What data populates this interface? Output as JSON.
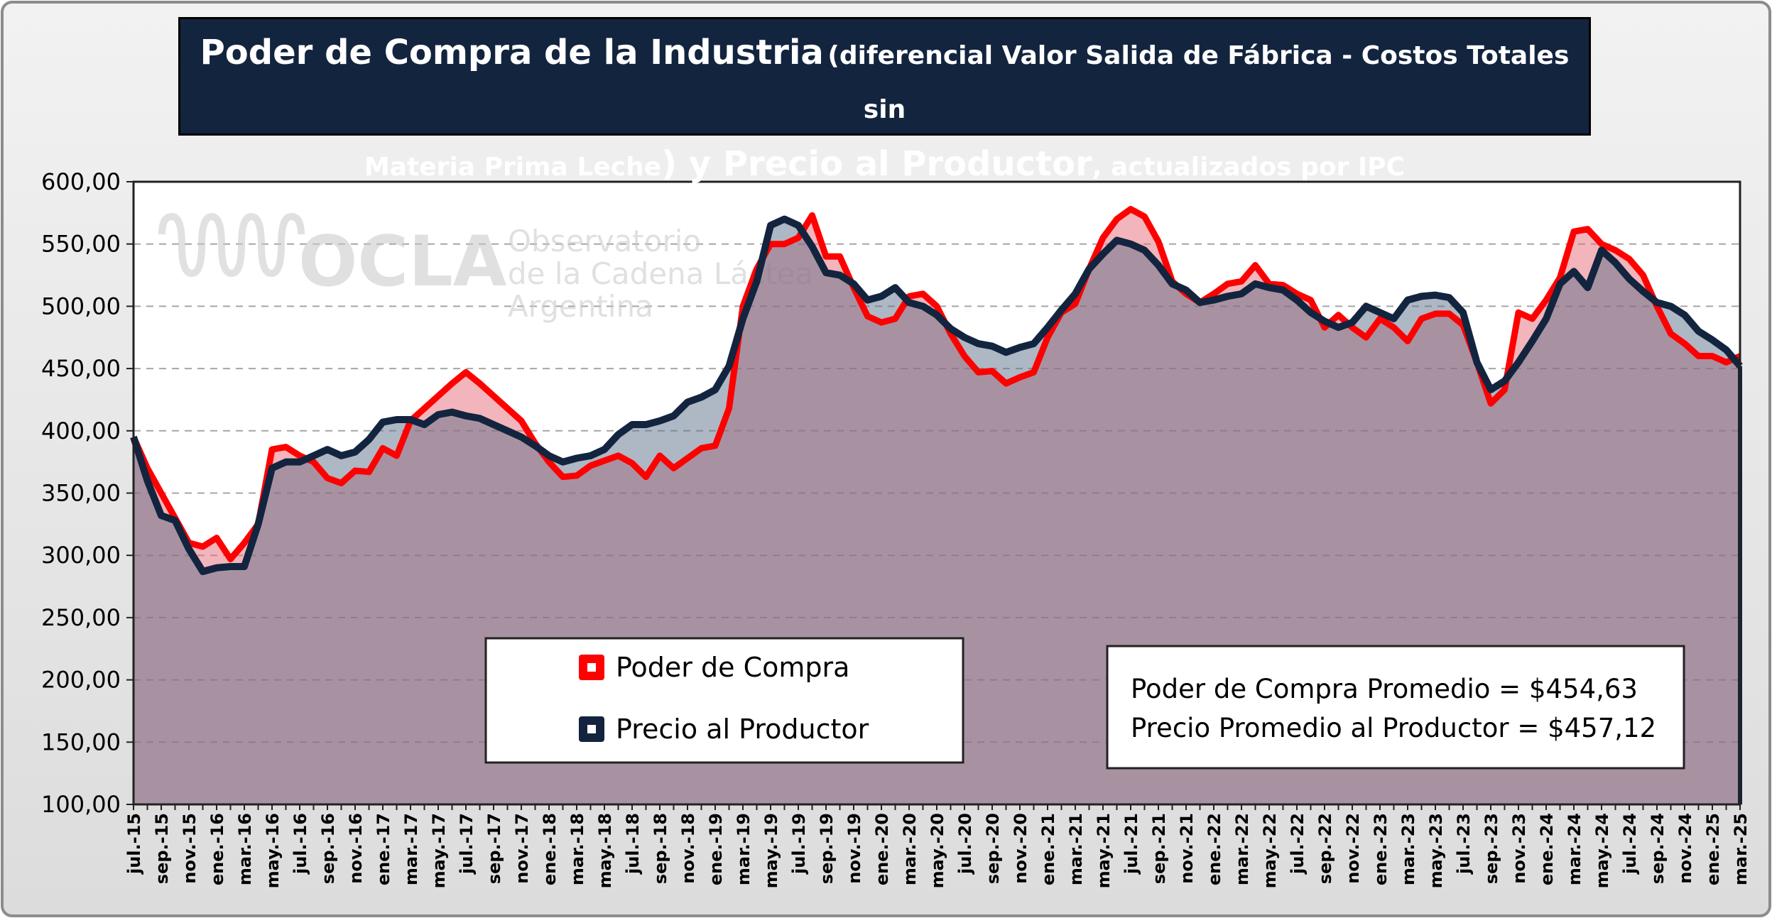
{
  "chart_data": {
    "type": "area",
    "title_parts": [
      "Poder de Compra de la Industria",
      "(diferencial Valor Salida de Fábrica - Costos Totales sin",
      "Materia Prima Leche",
      ") y Precio al Productor",
      ", actualizados por IPC"
    ],
    "watermark": [
      "OCLA",
      "Observatorio",
      "de la Cadena Láctea",
      "Argentina"
    ],
    "annotations": [
      "Poder de Compra Promedio = $454,63",
      "Precio Promedio al Productor = $457,12"
    ],
    "categories": [
      "jul.-15",
      null,
      "sep.-15",
      null,
      "nov.-15",
      null,
      "ene.-16",
      null,
      "mar.-16",
      null,
      "may.-16",
      null,
      "jul.-16",
      null,
      "sep.-16",
      null,
      "nov.-16",
      null,
      "ene.-17",
      null,
      "mar.-17",
      null,
      "may.-17",
      null,
      "jul.-17",
      null,
      "sep.-17",
      null,
      "nov.-17",
      null,
      "ene.-18",
      null,
      "mar.-18",
      null,
      "may.-18",
      null,
      "jul.-18",
      null,
      "sep.-18",
      null,
      "nov.-18",
      null,
      "ene.-19",
      null,
      "mar.-19",
      null,
      "may.-19",
      null,
      "jul.-19",
      null,
      "sep.-19",
      null,
      "nov.-19",
      null,
      "ene.-20",
      null,
      "mar.-20",
      null,
      "may.-20",
      null,
      "jul.-20",
      null,
      "sep.-20",
      null,
      "nov.-20",
      null,
      "ene.-21",
      null,
      "mar.-21",
      null,
      "may.-21",
      null,
      "jul.-21",
      null,
      "sep.-21",
      null,
      "nov.-21",
      null,
      "ene.-22",
      null,
      "mar.-22",
      null,
      "may.-22",
      null,
      "jul.-22",
      null,
      "sep.-22",
      null,
      "nov.-22",
      null,
      "ene.-23",
      null,
      "mar.-23",
      null,
      "may.-23",
      null,
      "jul.-23",
      null,
      "sep.-23",
      null,
      "nov.-23",
      null,
      "ene.-24",
      null,
      "mar.-24",
      null,
      "may.-24",
      null,
      "jul.-24",
      null,
      "sep.-24",
      null,
      "nov.-24",
      null,
      "ene.-25",
      null,
      "mar.-25"
    ],
    "series": [
      {
        "name": "Poder de Compra",
        "color": "#ff0000",
        "fill": "#e56b78",
        "values": [
          395,
          370,
          350,
          330,
          310,
          307,
          314,
          297,
          310,
          325,
          385,
          387,
          380,
          375,
          362,
          358,
          368,
          367,
          386,
          380,
          408,
          418,
          428,
          438,
          447,
          438,
          428,
          418,
          408,
          390,
          375,
          363,
          364,
          372,
          376,
          380,
          374,
          363,
          380,
          370,
          378,
          386,
          388,
          418,
          500,
          530,
          550,
          550,
          555,
          573,
          540,
          540,
          515,
          492,
          487,
          490,
          508,
          510,
          500,
          478,
          460,
          447,
          448,
          438,
          443,
          447,
          475,
          495,
          502,
          530,
          555,
          570,
          578,
          572,
          552,
          520,
          510,
          503,
          510,
          518,
          520,
          533,
          518,
          517,
          510,
          505,
          483,
          493,
          483,
          475,
          490,
          483,
          472,
          490,
          494,
          494,
          485,
          455,
          422,
          433,
          495,
          490,
          505,
          523,
          560,
          562,
          550,
          545,
          538,
          525,
          500,
          478,
          470,
          460,
          460,
          455,
          460
        ]
      },
      {
        "name": "Precio al Productor",
        "color": "#13243f",
        "fill": "#5e6f8a",
        "values": [
          395,
          360,
          332,
          328,
          305,
          287,
          290,
          291,
          291,
          325,
          370,
          375,
          375,
          380,
          385,
          380,
          383,
          393,
          407,
          409,
          409,
          405,
          413,
          415,
          412,
          410,
          405,
          400,
          395,
          388,
          380,
          375,
          378,
          380,
          385,
          397,
          405,
          405,
          408,
          412,
          423,
          427,
          433,
          452,
          490,
          520,
          565,
          570,
          565,
          548,
          527,
          525,
          518,
          505,
          508,
          515,
          503,
          500,
          493,
          482,
          475,
          470,
          468,
          463,
          467,
          470,
          483,
          497,
          510,
          530,
          542,
          553,
          550,
          545,
          533,
          518,
          513,
          503,
          505,
          508,
          510,
          518,
          515,
          513,
          505,
          495,
          488,
          483,
          487,
          500,
          495,
          490,
          505,
          508,
          509,
          507,
          495,
          455,
          433,
          440,
          455,
          472,
          490,
          518,
          528,
          515,
          545,
          535,
          522,
          512,
          503,
          500,
          493,
          480,
          473,
          465,
          452
        ]
      }
    ],
    "ylim": [
      100,
      600
    ],
    "yticks": [
      {
        "value": 100,
        "label": "100,00"
      },
      {
        "value": 150,
        "label": "150,00"
      },
      {
        "value": 200,
        "label": "200,00"
      },
      {
        "value": 250,
        "label": "250,00"
      },
      {
        "value": 300,
        "label": "300,00"
      },
      {
        "value": 350,
        "label": "350,00"
      },
      {
        "value": 400,
        "label": "400,00"
      },
      {
        "value": 450,
        "label": "450,00"
      },
      {
        "value": 500,
        "label": "500,00"
      },
      {
        "value": 550,
        "label": "550,00"
      },
      {
        "value": 600,
        "label": "600,00"
      }
    ],
    "grid": true
  }
}
